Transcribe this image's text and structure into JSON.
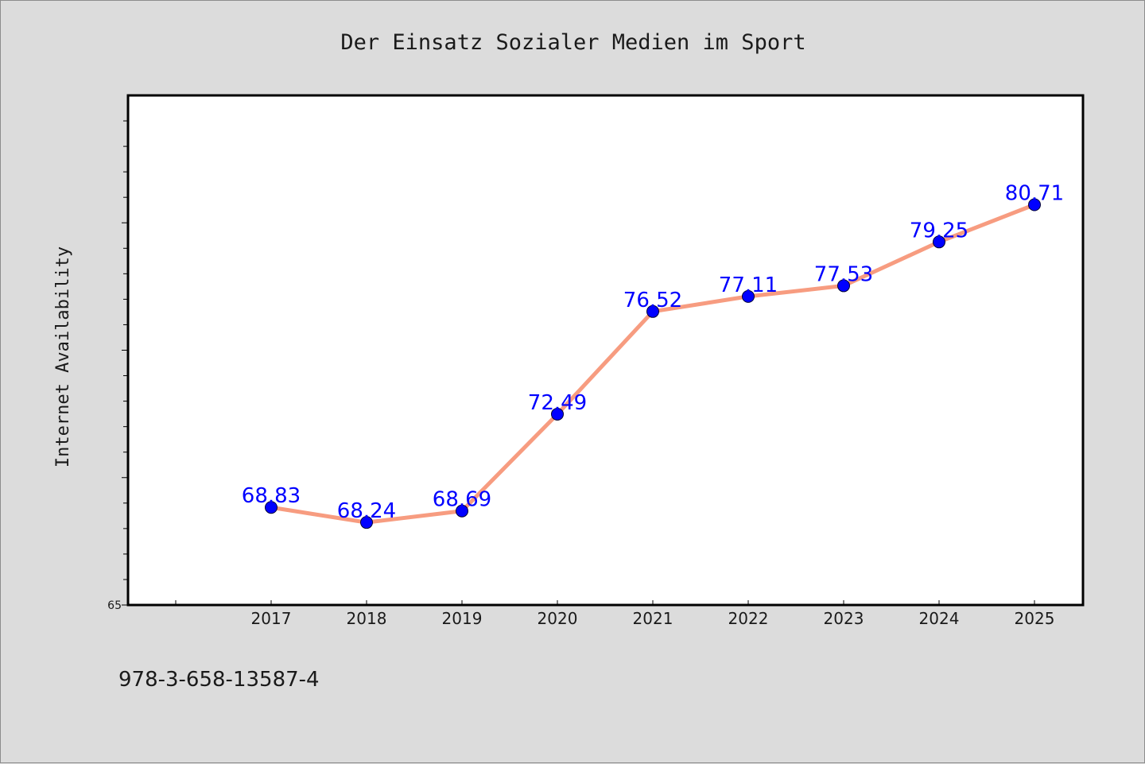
{
  "colors": {
    "background": "#dcdcdc",
    "plot_background": "#ffffff",
    "line": "#f79c80",
    "marker": "#0000ff",
    "label": "#0000ff"
  },
  "footer": {
    "isbn": "978-3-658-13587-4"
  },
  "chart_data": {
    "type": "line",
    "title": "Der Einsatz Sozialer Medien im Sport",
    "xlabel": "",
    "ylabel": "Internet Availability",
    "categories": [
      "2017",
      "2018",
      "2019",
      "2020",
      "2021",
      "2022",
      "2023",
      "2024",
      "2025"
    ],
    "series": [
      {
        "values": [
          68.83,
          68.24,
          68.69,
          72.49,
          76.52,
          77.11,
          77.53,
          79.25,
          80.71
        ]
      }
    ],
    "data_labels": [
      "68.83",
      "68.24",
      "68.69",
      "72.49",
      "76.52",
      "77.11",
      "77.53",
      "79.25",
      "80.71"
    ],
    "ylim": [
      65,
      85
    ],
    "ytick_labels": [
      "65"
    ],
    "grid": false,
    "legend": "none"
  }
}
